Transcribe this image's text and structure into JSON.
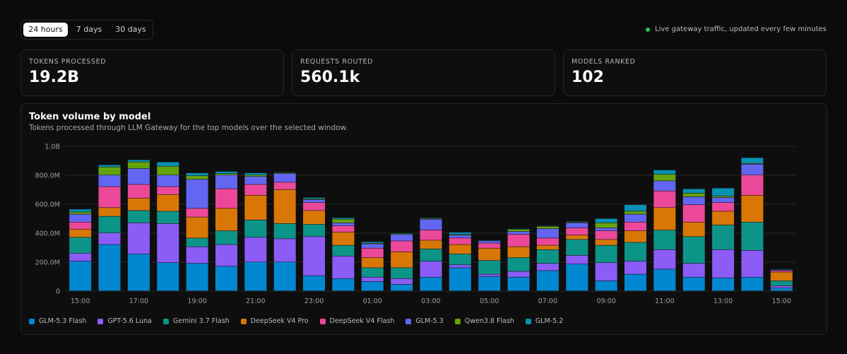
{
  "range_tabs": [
    "24 hours",
    "7 days",
    "30 days"
  ],
  "active_tab": 0,
  "status": "Live gateway traffic, updated every few minutes",
  "colors": {
    "status_dot": "#22c55e",
    "series": [
      "#0288d1",
      "#8b5cf6",
      "#0d9488",
      "#d97706",
      "#ec4899",
      "#6366f1",
      "#65a30d",
      "#0891b2"
    ]
  },
  "cards": [
    {
      "label": "TOKENS PROCESSED",
      "value": "19.2B"
    },
    {
      "label": "REQUESTS ROUTED",
      "value": "560.1k"
    },
    {
      "label": "MODELS RANKED",
      "value": "102"
    }
  ],
  "chart": {
    "title": "Token volume by model",
    "subtitle": "Tokens processed through LLM Gateway for the top models over the selected window."
  },
  "chart_data": {
    "type": "bar",
    "stacked": true,
    "title": "Token volume by model",
    "ylim": [
      0,
      1000000000
    ],
    "yticks": [
      "0",
      "200.0M",
      "400.0M",
      "600.0M",
      "800.0M",
      "1.0B"
    ],
    "xticks": [
      "15:00",
      "17:00",
      "19:00",
      "21:00",
      "23:00",
      "01:00",
      "03:00",
      "05:00",
      "07:00",
      "09:00",
      "11:00",
      "13:00",
      "15:00"
    ],
    "grid": true,
    "legend_position": "bottom",
    "categories": [
      "15:00",
      "16:00",
      "17:00",
      "18:00",
      "19:00",
      "20:00",
      "21:00",
      "22:00",
      "23:00",
      "00:00",
      "01:00",
      "02:00",
      "03:00",
      "04:00",
      "05:00",
      "06:00",
      "07:00",
      "08:00",
      "09:00",
      "10:00",
      "11:00",
      "12:00",
      "13:00",
      "14:00",
      "15:00"
    ],
    "series": [
      {
        "name": "GLM-5.3 Flash",
        "values": [
          205,
          320,
          255,
          195,
          190,
          170,
          200,
          200,
          105,
          85,
          65,
          45,
          95,
          160,
          100,
          95,
          140,
          185,
          70,
          115,
          150,
          95,
          90,
          95,
          20
        ]
      },
      {
        "name": "GPT-5.6 Luna",
        "values": [
          55,
          80,
          215,
          270,
          115,
          150,
          170,
          160,
          270,
          155,
          30,
          40,
          110,
          20,
          15,
          40,
          50,
          60,
          125,
          90,
          135,
          95,
          195,
          185,
          15
        ]
      },
      {
        "name": "Gemini 3.7 Flash",
        "values": [
          110,
          115,
          85,
          85,
          60,
          95,
          120,
          105,
          85,
          75,
          65,
          75,
          85,
          75,
          95,
          95,
          95,
          110,
          120,
          130,
          135,
          185,
          170,
          195,
          35
        ]
      },
      {
        "name": "DeepSeek V4 Pro",
        "values": [
          55,
          60,
          85,
          115,
          145,
          155,
          170,
          235,
          95,
          90,
          70,
          110,
          60,
          65,
          85,
          75,
          30,
          30,
          40,
          80,
          155,
          100,
          95,
          185,
          60
        ]
      },
      {
        "name": "DeepSeek V4 Flash",
        "values": [
          50,
          145,
          95,
          55,
          60,
          135,
          75,
          50,
          55,
          45,
          65,
          75,
          70,
          45,
          35,
          85,
          50,
          50,
          60,
          60,
          115,
          120,
          60,
          140,
          10
        ]
      },
      {
        "name": "GLM-5.3",
        "values": [
          55,
          80,
          110,
          80,
          200,
          95,
          55,
          60,
          20,
          20,
          30,
          45,
          75,
          20,
          15,
          20,
          65,
          35,
          20,
          55,
          70,
          55,
          35,
          75,
          5
        ]
      },
      {
        "name": "Qwen3.8 Flash",
        "values": [
          15,
          55,
          45,
          60,
          25,
          10,
          10,
          5,
          5,
          25,
          5,
          5,
          5,
          5,
          0,
          15,
          15,
          5,
          35,
          20,
          45,
          25,
          10,
          5,
          0
        ]
      },
      {
        "name": "GLM-5.2",
        "values": [
          20,
          15,
          15,
          30,
          20,
          15,
          15,
          5,
          10,
          10,
          10,
          5,
          5,
          15,
          5,
          5,
          5,
          5,
          30,
          45,
          30,
          30,
          55,
          40,
          5
        ]
      }
    ],
    "units": "millions of tokens"
  }
}
